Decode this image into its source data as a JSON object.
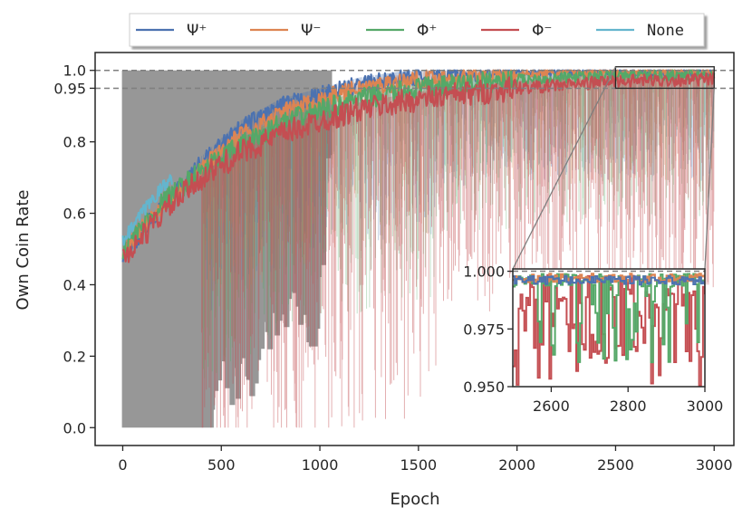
{
  "chart_data": {
    "type": "line",
    "title": "",
    "xlabel": "Epoch",
    "ylabel": "Own Coin Rate",
    "xlim": [
      -140,
      3100
    ],
    "ylim": [
      -0.05,
      1.05
    ],
    "xticks": [
      0,
      500,
      1000,
      1500,
      2000,
      2500,
      3000
    ],
    "yticks": [
      0.0,
      0.2,
      0.4,
      0.6,
      0.8,
      0.95,
      1.0
    ],
    "ytick_labels": [
      "0.0",
      "0.2",
      "0.4",
      "0.6",
      "0.8",
      "0.95",
      "1.0"
    ],
    "reference_lines": [
      1.0,
      0.95
    ],
    "legend_position": "top-center, outside plot",
    "series": [
      {
        "name": "Ψ⁺",
        "color": "#4c72b0",
        "x": [
          0,
          200,
          400,
          600,
          800,
          1000,
          1200,
          1500,
          2000,
          2500,
          3000
        ],
        "values": [
          0.48,
          0.62,
          0.74,
          0.84,
          0.9,
          0.93,
          0.96,
          0.985,
          0.995,
          0.997,
          0.997
        ]
      },
      {
        "name": "Ψ⁻",
        "color": "#dd8452",
        "x": [
          0,
          200,
          400,
          600,
          800,
          1000,
          1200,
          1500,
          2000,
          2500,
          3000
        ],
        "values": [
          0.5,
          0.62,
          0.73,
          0.82,
          0.88,
          0.92,
          0.95,
          0.975,
          0.99,
          0.996,
          0.997
        ]
      },
      {
        "name": "Φ⁺",
        "color": "#55a868",
        "x": [
          0,
          200,
          400,
          600,
          800,
          1000,
          1200,
          1500,
          2000,
          2500,
          3000
        ],
        "values": [
          0.5,
          0.63,
          0.72,
          0.79,
          0.85,
          0.89,
          0.92,
          0.95,
          0.975,
          0.985,
          0.988
        ]
      },
      {
        "name": "Φ⁻",
        "color": "#c44e52",
        "x": [
          0,
          200,
          400,
          600,
          800,
          1000,
          1200,
          1500,
          2000,
          2500,
          3000
        ],
        "values": [
          0.47,
          0.6,
          0.7,
          0.77,
          0.82,
          0.86,
          0.89,
          0.92,
          0.95,
          0.97,
          0.975
        ]
      },
      {
        "name": "None",
        "color": "#64b5cd",
        "x": [
          0,
          50,
          100,
          150,
          200,
          250
        ],
        "values": [
          0.52,
          0.56,
          0.6,
          0.64,
          0.67,
          0.7
        ]
      }
    ],
    "inset": {
      "xlim": [
        2500,
        3000
      ],
      "ylim": [
        0.95,
        1.001
      ],
      "xticks": [
        2600,
        2800,
        3000
      ],
      "yticks": [
        0.95,
        0.975,
        1.0
      ],
      "ytick_labels": [
        "0.950",
        "0.975",
        "1.000"
      ],
      "zoom_box": {
        "x": [
          2500,
          3000
        ],
        "y": [
          0.95,
          1.0
        ]
      },
      "series_levels": {
        "Ψ⁺": 0.998,
        "Ψ⁻": 0.999,
        "Φ⁺": 0.988,
        "Φ⁻": 0.972
      }
    }
  }
}
